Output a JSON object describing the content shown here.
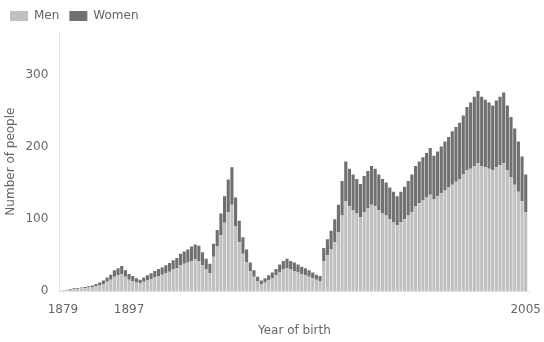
{
  "chart_data": {
    "type": "bar",
    "stacked": true,
    "grid": false,
    "legend": "upper left",
    "xlabel": "Year of birth",
    "ylabel": "Number of people",
    "x": [
      1879,
      1880,
      1881,
      1882,
      1883,
      1884,
      1885,
      1886,
      1887,
      1888,
      1889,
      1890,
      1891,
      1892,
      1893,
      1894,
      1895,
      1896,
      1897,
      1898,
      1899,
      1900,
      1901,
      1902,
      1903,
      1904,
      1905,
      1906,
      1907,
      1908,
      1909,
      1910,
      1911,
      1912,
      1913,
      1914,
      1915,
      1916,
      1917,
      1918,
      1919,
      1920,
      1921,
      1922,
      1923,
      1924,
      1925,
      1926,
      1927,
      1928,
      1929,
      1930,
      1931,
      1932,
      1933,
      1934,
      1935,
      1936,
      1937,
      1938,
      1939,
      1940,
      1941,
      1942,
      1943,
      1944,
      1945,
      1946,
      1947,
      1948,
      1949,
      1950,
      1951,
      1952,
      1953,
      1954,
      1955,
      1956,
      1957,
      1958,
      1959,
      1960,
      1961,
      1962,
      1963,
      1964,
      1965,
      1966,
      1967,
      1968,
      1969,
      1970,
      1971,
      1972,
      1973,
      1974,
      1975,
      1976,
      1977,
      1978,
      1979,
      1980,
      1981,
      1982,
      1983,
      1984,
      1985,
      1986,
      1987,
      1988,
      1989,
      1990,
      1991,
      1992,
      1993,
      1994,
      1995,
      1996,
      1997,
      1998,
      1999,
      2000,
      2001,
      2002,
      2003,
      2004,
      2005
    ],
    "series": [
      {
        "name": "Men",
        "color": "#c0c0c0",
        "values": [
          1,
          2,
          2,
          3,
          3,
          4,
          4,
          5,
          6,
          7,
          8,
          10,
          13,
          16,
          20,
          22,
          24,
          20,
          16,
          14,
          12,
          11,
          13,
          15,
          17,
          19,
          21,
          23,
          25,
          27,
          30,
          32,
          36,
          38,
          40,
          42,
          44,
          42,
          36,
          30,
          25,
          48,
          62,
          78,
          95,
          110,
          120,
          90,
          68,
          52,
          40,
          28,
          20,
          14,
          10,
          12,
          15,
          18,
          22,
          26,
          30,
          32,
          30,
          28,
          26,
          24,
          22,
          20,
          18,
          16,
          14,
          42,
          50,
          58,
          68,
          82,
          105,
          125,
          118,
          112,
          108,
          103,
          110,
          115,
          120,
          118,
          112,
          108,
          105,
          100,
          96,
          92,
          96,
          100,
          105,
          110,
          118,
          122,
          126,
          130,
          134,
          128,
          132,
          136,
          140,
          144,
          148,
          152,
          156,
          162,
          168,
          170,
          174,
          178,
          174,
          172,
          170,
          168,
          172,
          175,
          178,
          168,
          158,
          148,
          138,
          125,
          110
        ]
      },
      {
        "name": "Women",
        "color": "#707070",
        "values": [
          0,
          0,
          1,
          1,
          1,
          1,
          2,
          2,
          2,
          3,
          4,
          5,
          6,
          7,
          9,
          10,
          11,
          9,
          8,
          7,
          6,
          5,
          6,
          7,
          8,
          9,
          10,
          10,
          11,
          12,
          13,
          14,
          16,
          17,
          18,
          20,
          21,
          21,
          18,
          15,
          13,
          18,
          23,
          30,
          37,
          45,
          52,
          40,
          30,
          23,
          18,
          12,
          9,
          6,
          5,
          6,
          7,
          8,
          9,
          11,
          12,
          13,
          12,
          12,
          11,
          10,
          10,
          9,
          8,
          7,
          7,
          18,
          22,
          26,
          32,
          38,
          48,
          55,
          52,
          50,
          48,
          46,
          50,
          52,
          54,
          52,
          50,
          48,
          46,
          44,
          42,
          40,
          42,
          45,
          48,
          52,
          56,
          58,
          60,
          62,
          65,
          60,
          62,
          65,
          68,
          70,
          74,
          76,
          78,
          82,
          88,
          92,
          96,
          100,
          96,
          94,
          92,
          90,
          93,
          95,
          98,
          90,
          84,
          78,
          70,
          62,
          52
        ]
      }
    ],
    "xlim": [
      1878,
      2006
    ],
    "xticks": [
      1879,
      1897,
      2005
    ],
    "ylim": [
      0,
      360
    ],
    "yticks": [
      0,
      100,
      200,
      300
    ]
  }
}
